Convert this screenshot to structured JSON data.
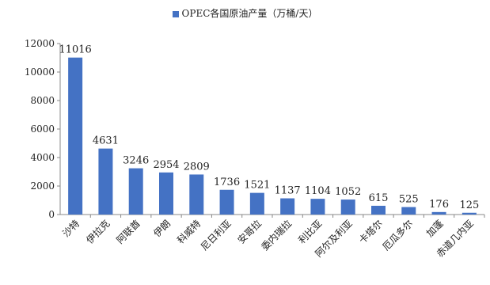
{
  "chart_data": {
    "type": "bar",
    "title": "",
    "legend": {
      "label": "OPEC各国原油产量（万桶/天）",
      "position": "top"
    },
    "categories": [
      "沙特",
      "伊拉克",
      "阿联酋",
      "伊朗",
      "科威特",
      "尼日利亚",
      "安哥拉",
      "委内瑞拉",
      "利比亚",
      "阿尔及利亚",
      "卡塔尔",
      "厄瓜多尔",
      "加蓬",
      "赤道几内亚"
    ],
    "values": [
      11016,
      4631,
      3246,
      2954,
      2809,
      1736,
      1521,
      1137,
      1104,
      1052,
      615,
      525,
      176,
      125
    ],
    "ylim": [
      0,
      12000
    ],
    "yticks": [
      0,
      2000,
      4000,
      6000,
      8000,
      10000,
      12000
    ],
    "grid": false,
    "bar_color": "#4472C4"
  }
}
